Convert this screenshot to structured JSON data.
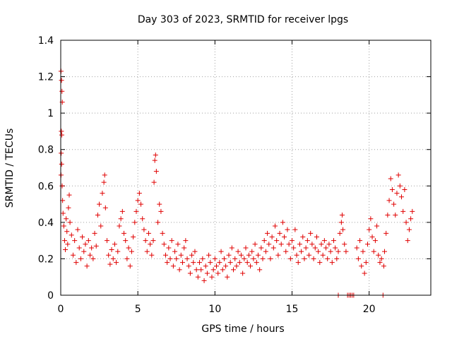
{
  "chart_data": {
    "type": "scatter",
    "title": "Day 303 of 2023, SRMTID for receiver lpgs",
    "xlabel": "GPS time / hours",
    "ylabel": "SRMTID / TECUs",
    "xlim": [
      0,
      24
    ],
    "ylim": [
      0,
      1.4
    ],
    "x_ticks": [
      0,
      5,
      10,
      15,
      20
    ],
    "y_ticks": [
      0,
      0.2,
      0.4,
      0.6,
      0.8,
      1,
      1.2,
      1.4
    ],
    "x_tick_labels": [
      "0",
      "5",
      "10",
      "15",
      "20"
    ],
    "y_tick_labels": [
      "0",
      "0.2",
      "0.4",
      "0.6",
      "0.8",
      "1",
      "1.2",
      "1.4"
    ],
    "grid": true,
    "marker": "plus",
    "color": "#e00000",
    "series": [
      {
        "name": "SRMTID",
        "points": [
          [
            0.02,
            1.23
          ],
          [
            0.05,
            1.18
          ],
          [
            0.08,
            1.12
          ],
          [
            0.1,
            1.06
          ],
          [
            0.04,
            0.9
          ],
          [
            0.07,
            0.88
          ],
          [
            0.03,
            0.78
          ],
          [
            0.06,
            0.72
          ],
          [
            0.02,
            0.66
          ],
          [
            0.09,
            0.6
          ],
          [
            0.12,
            0.52
          ],
          [
            0.15,
            0.45
          ],
          [
            0.2,
            0.38
          ],
          [
            0.25,
            0.3
          ],
          [
            0.3,
            0.25
          ],
          [
            0.35,
            0.42
          ],
          [
            0.4,
            0.35
          ],
          [
            0.45,
            0.28
          ],
          [
            0.5,
            0.48
          ],
          [
            0.55,
            0.55
          ],
          [
            0.6,
            0.4
          ],
          [
            0.7,
            0.33
          ],
          [
            0.8,
            0.22
          ],
          [
            0.9,
            0.3
          ],
          [
            1.0,
            0.18
          ],
          [
            1.1,
            0.36
          ],
          [
            1.2,
            0.26
          ],
          [
            1.3,
            0.2
          ],
          [
            1.4,
            0.32
          ],
          [
            1.5,
            0.24
          ],
          [
            1.6,
            0.28
          ],
          [
            1.7,
            0.16
          ],
          [
            1.8,
            0.3
          ],
          [
            1.9,
            0.22
          ],
          [
            2.0,
            0.26
          ],
          [
            2.1,
            0.2
          ],
          [
            2.2,
            0.34
          ],
          [
            2.3,
            0.27
          ],
          [
            2.4,
            0.44
          ],
          [
            2.5,
            0.5
          ],
          [
            2.6,
            0.38
          ],
          [
            2.7,
            0.56
          ],
          [
            2.8,
            0.62
          ],
          [
            2.85,
            0.66
          ],
          [
            2.9,
            0.48
          ],
          [
            3.0,
            0.3
          ],
          [
            3.1,
            0.22
          ],
          [
            3.2,
            0.17
          ],
          [
            3.3,
            0.25
          ],
          [
            3.4,
            0.2
          ],
          [
            3.5,
            0.28
          ],
          [
            3.6,
            0.18
          ],
          [
            3.7,
            0.24
          ],
          [
            3.8,
            0.38
          ],
          [
            3.9,
            0.42
          ],
          [
            4.0,
            0.46
          ],
          [
            4.1,
            0.34
          ],
          [
            4.2,
            0.3
          ],
          [
            4.3,
            0.2
          ],
          [
            4.4,
            0.26
          ],
          [
            4.5,
            0.16
          ],
          [
            4.6,
            0.24
          ],
          [
            4.7,
            0.32
          ],
          [
            4.8,
            0.4
          ],
          [
            4.9,
            0.46
          ],
          [
            5.0,
            0.52
          ],
          [
            5.1,
            0.56
          ],
          [
            5.2,
            0.5
          ],
          [
            5.3,
            0.42
          ],
          [
            5.4,
            0.36
          ],
          [
            5.5,
            0.3
          ],
          [
            5.6,
            0.24
          ],
          [
            5.7,
            0.34
          ],
          [
            5.8,
            0.28
          ],
          [
            5.9,
            0.22
          ],
          [
            6.0,
            0.3
          ],
          [
            6.05,
            0.62
          ],
          [
            6.1,
            0.74
          ],
          [
            6.15,
            0.77
          ],
          [
            6.2,
            0.68
          ],
          [
            6.3,
            0.4
          ],
          [
            6.4,
            0.5
          ],
          [
            6.5,
            0.46
          ],
          [
            6.6,
            0.34
          ],
          [
            6.7,
            0.28
          ],
          [
            6.8,
            0.22
          ],
          [
            6.9,
            0.18
          ],
          [
            7.0,
            0.26
          ],
          [
            7.1,
            0.2
          ],
          [
            7.2,
            0.3
          ],
          [
            7.3,
            0.16
          ],
          [
            7.4,
            0.24
          ],
          [
            7.5,
            0.2
          ],
          [
            7.6,
            0.28
          ],
          [
            7.7,
            0.14
          ],
          [
            7.8,
            0.22
          ],
          [
            7.9,
            0.18
          ],
          [
            8.0,
            0.26
          ],
          [
            8.1,
            0.3
          ],
          [
            8.2,
            0.2
          ],
          [
            8.3,
            0.16
          ],
          [
            8.4,
            0.12
          ],
          [
            8.5,
            0.22
          ],
          [
            8.6,
            0.18
          ],
          [
            8.7,
            0.24
          ],
          [
            8.8,
            0.14
          ],
          [
            8.9,
            0.1
          ],
          [
            9.0,
            0.18
          ],
          [
            9.1,
            0.14
          ],
          [
            9.2,
            0.2
          ],
          [
            9.3,
            0.08
          ],
          [
            9.4,
            0.16
          ],
          [
            9.5,
            0.12
          ],
          [
            9.6,
            0.22
          ],
          [
            9.7,
            0.18
          ],
          [
            9.8,
            0.1
          ],
          [
            9.9,
            0.14
          ],
          [
            10.0,
            0.2
          ],
          [
            10.1,
            0.16
          ],
          [
            10.2,
            0.12
          ],
          [
            10.3,
            0.18
          ],
          [
            10.4,
            0.24
          ],
          [
            10.5,
            0.14
          ],
          [
            10.6,
            0.2
          ],
          [
            10.7,
            0.16
          ],
          [
            10.8,
            0.1
          ],
          [
            10.9,
            0.22
          ],
          [
            11.0,
            0.18
          ],
          [
            11.1,
            0.26
          ],
          [
            11.2,
            0.14
          ],
          [
            11.3,
            0.2
          ],
          [
            11.4,
            0.16
          ],
          [
            11.5,
            0.24
          ],
          [
            11.6,
            0.18
          ],
          [
            11.7,
            0.22
          ],
          [
            11.8,
            0.12
          ],
          [
            11.9,
            0.2
          ],
          [
            12.0,
            0.26
          ],
          [
            12.1,
            0.18
          ],
          [
            12.2,
            0.22
          ],
          [
            12.3,
            0.16
          ],
          [
            12.4,
            0.24
          ],
          [
            12.5,
            0.2
          ],
          [
            12.6,
            0.28
          ],
          [
            12.7,
            0.18
          ],
          [
            12.8,
            0.22
          ],
          [
            12.9,
            0.14
          ],
          [
            13.0,
            0.26
          ],
          [
            13.1,
            0.2
          ],
          [
            13.2,
            0.3
          ],
          [
            13.3,
            0.24
          ],
          [
            13.4,
            0.34
          ],
          [
            13.5,
            0.28
          ],
          [
            13.6,
            0.2
          ],
          [
            13.7,
            0.32
          ],
          [
            13.8,
            0.26
          ],
          [
            13.9,
            0.38
          ],
          [
            14.0,
            0.3
          ],
          [
            14.1,
            0.22
          ],
          [
            14.2,
            0.34
          ],
          [
            14.3,
            0.28
          ],
          [
            14.4,
            0.4
          ],
          [
            14.5,
            0.32
          ],
          [
            14.6,
            0.24
          ],
          [
            14.7,
            0.36
          ],
          [
            14.8,
            0.28
          ],
          [
            14.9,
            0.2
          ],
          [
            15.0,
            0.3
          ],
          [
            15.1,
            0.26
          ],
          [
            15.2,
            0.36
          ],
          [
            15.3,
            0.22
          ],
          [
            15.4,
            0.18
          ],
          [
            15.5,
            0.28
          ],
          [
            15.6,
            0.24
          ],
          [
            15.7,
            0.32
          ],
          [
            15.8,
            0.2
          ],
          [
            15.9,
            0.26
          ],
          [
            16.0,
            0.3
          ],
          [
            16.1,
            0.22
          ],
          [
            16.2,
            0.34
          ],
          [
            16.3,
            0.28
          ],
          [
            16.4,
            0.2
          ],
          [
            16.5,
            0.26
          ],
          [
            16.6,
            0.32
          ],
          [
            16.7,
            0.24
          ],
          [
            16.8,
            0.18
          ],
          [
            16.9,
            0.28
          ],
          [
            17.0,
            0.22
          ],
          [
            17.1,
            0.3
          ],
          [
            17.2,
            0.26
          ],
          [
            17.3,
            0.2
          ],
          [
            17.4,
            0.28
          ],
          [
            17.5,
            0.24
          ],
          [
            17.6,
            0.18
          ],
          [
            17.7,
            0.3
          ],
          [
            17.8,
            0.26
          ],
          [
            17.9,
            0.2
          ],
          [
            18.0,
            0.24
          ],
          [
            18.1,
            0.34
          ],
          [
            18.2,
            0.4
          ],
          [
            18.25,
            0.44
          ],
          [
            18.3,
            0.36
          ],
          [
            18.4,
            0.28
          ],
          [
            18.5,
            0.24
          ],
          [
            18.0,
            0.0
          ],
          [
            18.6,
            0.0
          ],
          [
            18.7,
            0.0
          ],
          [
            18.8,
            0.0
          ],
          [
            18.9,
            0.0
          ],
          [
            19.0,
            0.0
          ],
          [
            19.2,
            0.26
          ],
          [
            19.3,
            0.2
          ],
          [
            19.4,
            0.3
          ],
          [
            19.5,
            0.16
          ],
          [
            19.6,
            0.24
          ],
          [
            19.7,
            0.12
          ],
          [
            19.8,
            0.18
          ],
          [
            19.9,
            0.28
          ],
          [
            20.0,
            0.36
          ],
          [
            20.1,
            0.42
          ],
          [
            20.2,
            0.32
          ],
          [
            20.3,
            0.24
          ],
          [
            20.4,
            0.3
          ],
          [
            20.5,
            0.38
          ],
          [
            20.6,
            0.22
          ],
          [
            20.7,
            0.18
          ],
          [
            20.8,
            0.2
          ],
          [
            20.9,
            0.0
          ],
          [
            20.95,
            0.16
          ],
          [
            21.0,
            0.24
          ],
          [
            21.1,
            0.34
          ],
          [
            21.2,
            0.44
          ],
          [
            21.3,
            0.52
          ],
          [
            21.4,
            0.64
          ],
          [
            21.5,
            0.58
          ],
          [
            21.6,
            0.5
          ],
          [
            21.7,
            0.44
          ],
          [
            21.8,
            0.56
          ],
          [
            21.9,
            0.66
          ],
          [
            22.0,
            0.6
          ],
          [
            22.1,
            0.54
          ],
          [
            22.2,
            0.46
          ],
          [
            22.3,
            0.58
          ],
          [
            22.4,
            0.4
          ],
          [
            22.5,
            0.3
          ],
          [
            22.6,
            0.36
          ],
          [
            22.7,
            0.42
          ],
          [
            22.8,
            0.46
          ]
        ]
      }
    ]
  }
}
